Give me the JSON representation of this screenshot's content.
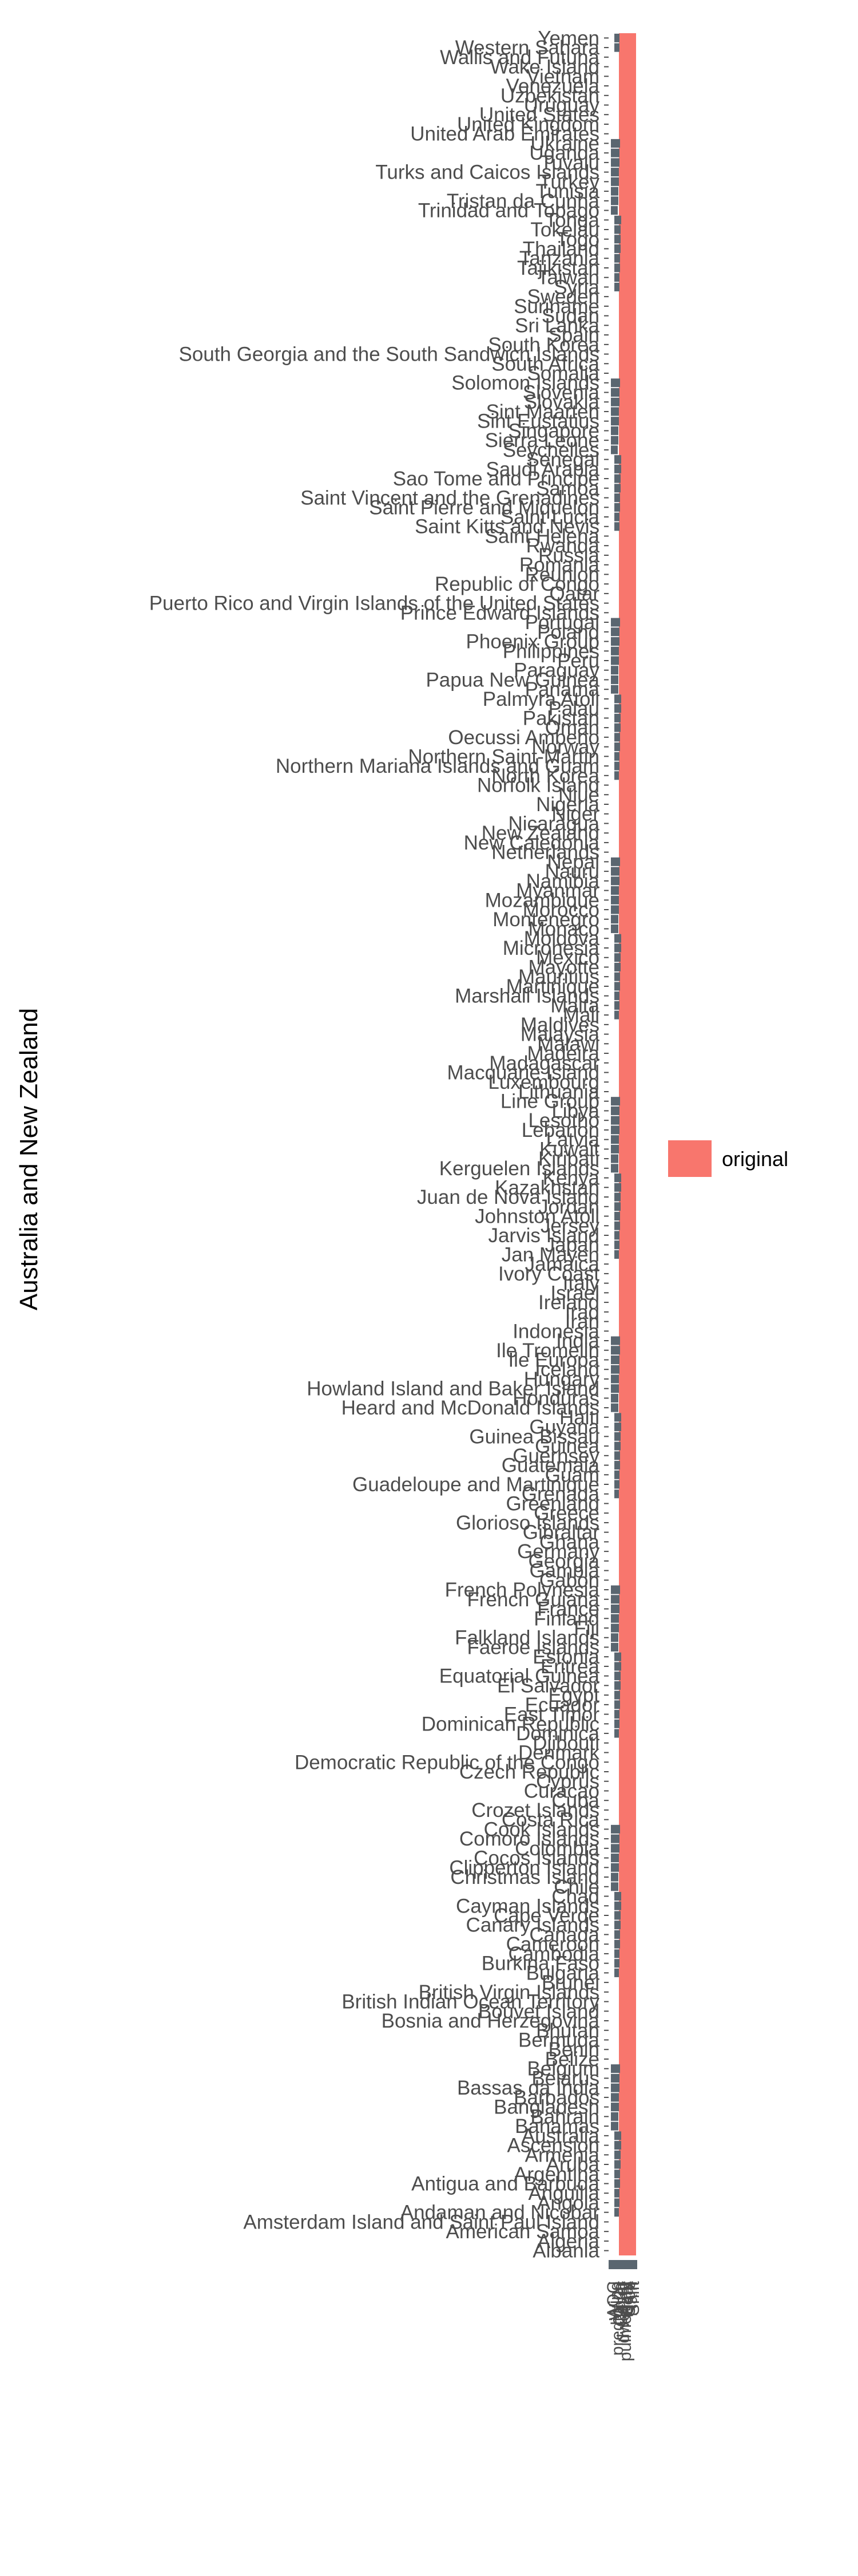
{
  "chart_data": {
    "type": "bar",
    "orientation": "horizontal",
    "ylabel": "Australia and New Zealand",
    "xlabel": "",
    "grid": false,
    "legend_position": "right",
    "legend": [
      {
        "label": "original",
        "color": "#F8766D"
      }
    ],
    "x_tick_labels": [
      "AOC",
      "Wind",
      "prediction",
      "Cloud",
      "Cover",
      "dwelling",
      "pulmonary",
      "Heat",
      "Glob",
      "Rain",
      "Shift"
    ],
    "y_categories": [
      "Albania",
      "Algeria",
      "American Samoa",
      "Amsterdam Island and Saint Paul Island",
      "Andaman and Nicobar",
      "Angola",
      "Anguilla",
      "Antigua and Barbuda",
      "Argentina",
      "Aruba",
      "Armenia",
      "Ascension",
      "Australia",
      "Bahamas",
      "Bahrain",
      "Bangladesh",
      "Barbados",
      "Bassas da India",
      "Belarus",
      "Belgium",
      "Belize",
      "Benin",
      "Bermuda",
      "Bhutan",
      "Bosnia and Herzegovina",
      "Bouvet Island",
      "British Indian Ocean Territory",
      "British Virgin Islands",
      "Brunei",
      "Bulgaria",
      "Burkina Faso",
      "Cambodia",
      "Cameroon",
      "Canada",
      "Canary Islands",
      "Cape Verde",
      "Cayman Islands",
      "Chad",
      "Chile",
      "Christmas Island",
      "Clipperton Island",
      "Cocos Islands",
      "Colombia",
      "Comoro Islands",
      "Cook Islands",
      "Costa Rica",
      "Crozet Islands",
      "Cuba",
      "Curacao",
      "Cyprus",
      "Czech Republic",
      "Democratic Republic of the Congo",
      "Denmark",
      "Djibouti",
      "Dominica",
      "Dominican Republic",
      "East Timor",
      "Ecuador",
      "Egypt",
      "El Salvador",
      "Equatorial Guinea",
      "Eritrea",
      "Estonia",
      "Faeroe Islands",
      "Falkland Islands",
      "Fiji",
      "Finland",
      "France",
      "French Guiana",
      "French Polynesia",
      "Gabon",
      "Gambia",
      "Georgia",
      "Germany",
      "Ghana",
      "Gibraltar",
      "Glorioso Islands",
      "Greece",
      "Greenland",
      "Grenada",
      "Guadeloupe and Martinique",
      "Guam",
      "Guatemala",
      "Guernsey",
      "Guinea",
      "Guinea Bissau",
      "Guyana",
      "Haiti",
      "Heard and McDonald Islands",
      "Honduras",
      "Howland Island and Baker Island",
      "Hungary",
      "Iceland",
      "Ile Europa",
      "Ile Tromelin",
      "India",
      "Indonesia",
      "Iran",
      "Iraq",
      "Ireland",
      "Israel",
      "Italy",
      "Ivory Coast",
      "Jamaica",
      "Jan Mayen",
      "Japan",
      "Jarvis Island",
      "Jersey",
      "Johnston Atoll",
      "Jordan",
      "Juan de Nova Island",
      "Kazakhstan",
      "Kenya",
      "Kerguelen Islands",
      "Kiribati",
      "Kuwait",
      "Latvia",
      "Lebanon",
      "Lesotho",
      "Libya",
      "Line Group",
      "Lithuania",
      "Luxembourg",
      "Macquarie Island",
      "Madagascar",
      "Madeira",
      "Malawi",
      "Malaysia",
      "Maldives",
      "Mali",
      "Malta",
      "Marshall Islands",
      "Martinique",
      "Mauritius",
      "Mayotte",
      "Mexico",
      "Micronesia",
      "Moldova",
      "Monaco",
      "Montenegro",
      "Morocco",
      "Mozambique",
      "Myanmar",
      "Namibia",
      "Nauru",
      "Nepal",
      "Netherlands",
      "New Caledonia",
      "New Zealand",
      "Nicaragua",
      "Niger",
      "Nigeria",
      "Niue",
      "Norfolk Island",
      "North Korea",
      "Northern Mariana Islands and Guam",
      "Northern Saint-Martin",
      "Norway",
      "Oecussi Ambeno",
      "Oman",
      "Pakistan",
      "Palau",
      "Palmyra Atoll",
      "Panama",
      "Papua New Guinea",
      "Paraguay",
      "Peru",
      "Philippines",
      "Phoenix Group",
      "Poland",
      "Portugal",
      "Prince Edward Islands",
      "Puerto Rico and Virgin Islands of the United States",
      "Qatar",
      "Republic of Congo",
      "Reunion",
      "Romania",
      "Russia",
      "Rwanda",
      "Saint Helena",
      "Saint Kitts and Nevis",
      "Saint Lucia",
      "Saint Pierre and Miquelon",
      "Saint Vincent and the Grenadines",
      "Samoa",
      "Sao Tome and Principe",
      "Saudi Arabia",
      "Senegal",
      "Seychelles",
      "Sierra Leone",
      "Singapore",
      "Sint Eustatius",
      "Sint Maarten",
      "Slovakia",
      "Slovenia",
      "Solomon Islands",
      "Somalia",
      "South Africa",
      "South Georgia and the South Sandwich Islands",
      "South Korea",
      "Spain",
      "Sri Lanka",
      "Sudan",
      "Suriname",
      "Sweden",
      "Syria",
      "Taiwan",
      "Tajikistan",
      "Tanzania",
      "Thailand",
      "Togo",
      "Tokelau",
      "Tonga",
      "Trinidad and Tobago",
      "Tristan da Cunha",
      "Tunisia",
      "Turkey",
      "Turks and Caicos Islands",
      "Tuvalu",
      "Uganda",
      "Ukraine",
      "United Arab Emirates",
      "United Kingdom",
      "United States",
      "Uruguay",
      "Uzbekistan",
      "Venezuela",
      "Vietnam",
      "Wake Island",
      "Wallis and Futuna",
      "Western Sahara",
      "Yemen"
    ],
    "series": [
      {
        "name": "original",
        "value_fraction": 1.0,
        "color": "#F8766D"
      }
    ],
    "colors": {
      "fill": "#F8766D",
      "tick": "#4d4d4d",
      "text": "#4d4d4d",
      "dark_bar": "#5a6670",
      "title": "#000000"
    }
  }
}
